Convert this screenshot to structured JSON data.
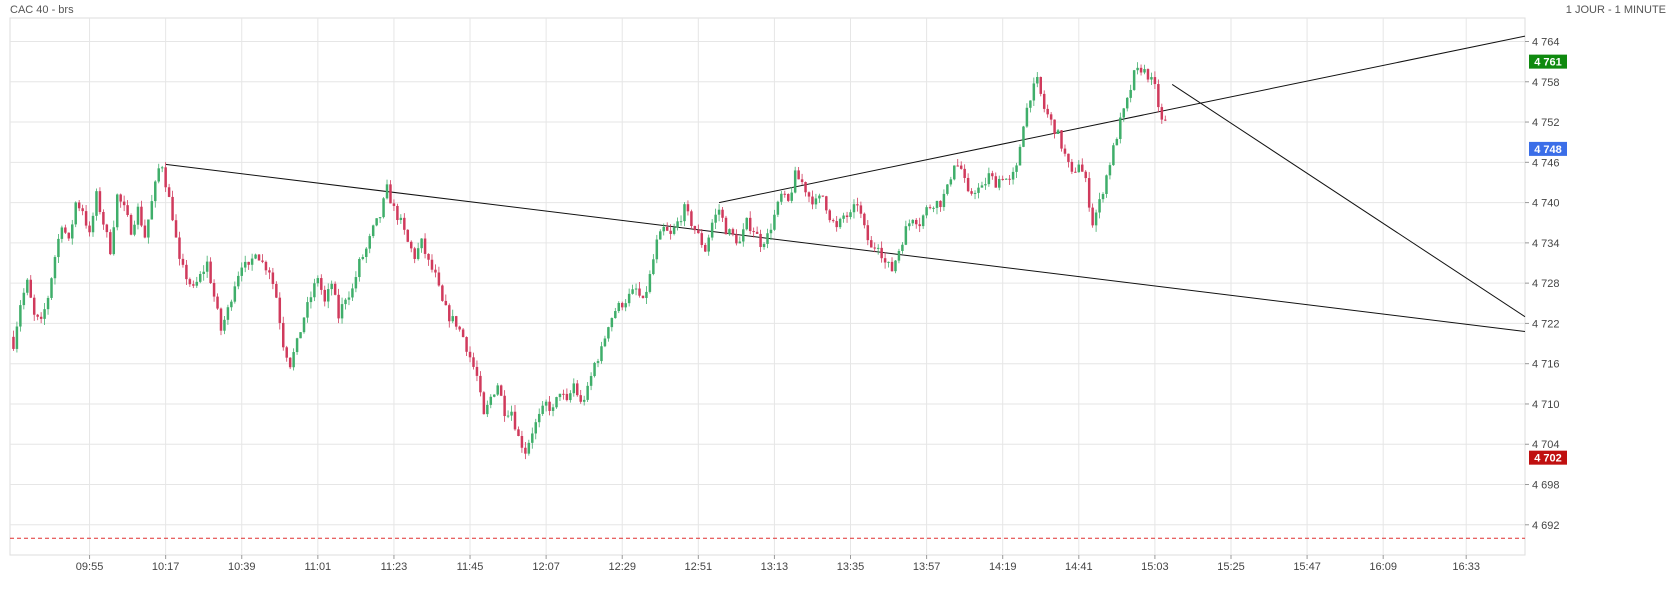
{
  "header": {
    "left_title": "CAC 40 - brs",
    "right_title": "1 JOUR - 1 MINUTE"
  },
  "chart_data": {
    "type": "candlestick",
    "title": "CAC 40 - brs",
    "period": "1 JOUR - 1 MINUTE",
    "x_ticks": [
      "09:55",
      "10:17",
      "10:39",
      "11:01",
      "11:23",
      "11:45",
      "12:07",
      "12:29",
      "12:51",
      "13:13",
      "13:35",
      "13:57",
      "14:19",
      "14:41",
      "15:03",
      "15:25",
      "15:47",
      "16:09",
      "16:33"
    ],
    "x_range": [
      "09:32",
      "16:50"
    ],
    "y_ticks": [
      4764,
      4758,
      4752,
      4746,
      4740,
      4734,
      4728,
      4722,
      4716,
      4710,
      4704,
      4698,
      4692
    ],
    "y_tick_labels": [
      "4 764",
      "4 758",
      "4 752",
      "4 746",
      "4 740",
      "4 734",
      "4 728",
      "4 722",
      "4 716",
      "4 710",
      "4 704",
      "4 698",
      "4 692"
    ],
    "ylim": [
      4687.5,
      4767.5
    ],
    "grid": true,
    "price_badges": [
      {
        "label": "4 761",
        "value": 4761.0,
        "color": "#0f8a0f"
      },
      {
        "label": "4 748",
        "value": 4748.0,
        "color": "#3b6ee8"
      },
      {
        "label": "4 702",
        "value": 4702.0,
        "color": "#c01010"
      }
    ],
    "reference_line": {
      "value": 4690.0,
      "color": "#e03030",
      "style": "dashed"
    },
    "trendlines": [
      {
        "points": [
          [
            "10:17",
            4745.7
          ],
          [
            "16:50",
            4720.8
          ]
        ]
      },
      {
        "points": [
          [
            "12:57",
            4740.0
          ],
          [
            "16:50",
            4764.8
          ]
        ]
      },
      {
        "points": [
          [
            "15:08",
            4757.6
          ],
          [
            "16:50",
            4723.0
          ]
        ]
      }
    ],
    "colors": {
      "up": "#3fae6a",
      "down": "#d03a5c",
      "grid": "#e6e6e6"
    },
    "price_path": [
      [
        "09:33",
        4720.0
      ],
      [
        "09:34",
        4719.0
      ],
      [
        "09:36",
        4725.0
      ],
      [
        "09:38",
        4728.0
      ],
      [
        "09:40",
        4723.0
      ],
      [
        "09:42",
        4722.0
      ],
      [
        "09:44",
        4726.0
      ],
      [
        "09:46",
        4732.0
      ],
      [
        "09:48",
        4737.0
      ],
      [
        "09:50",
        4734.0
      ],
      [
        "09:52",
        4740.0
      ],
      [
        "09:54",
        4739.0
      ],
      [
        "09:56",
        4735.0
      ],
      [
        "09:58",
        4741.0
      ],
      [
        "10:00",
        4737.0
      ],
      [
        "10:02",
        4733.0
      ],
      [
        "10:04",
        4741.0
      ],
      [
        "10:06",
        4739.0
      ],
      [
        "10:08",
        4736.0
      ],
      [
        "10:10",
        4739.0
      ],
      [
        "10:12",
        4735.0
      ],
      [
        "10:14",
        4740.0
      ],
      [
        "10:16",
        4745.0
      ],
      [
        "10:17",
        4745.7
      ],
      [
        "10:18",
        4743.0
      ],
      [
        "10:20",
        4738.0
      ],
      [
        "10:22",
        4731.0
      ],
      [
        "10:24",
        4729.0
      ],
      [
        "10:26",
        4727.0
      ],
      [
        "10:28",
        4729.0
      ],
      [
        "10:30",
        4731.0
      ],
      [
        "10:32",
        4726.0
      ],
      [
        "10:34",
        4721.0
      ],
      [
        "10:36",
        4724.0
      ],
      [
        "10:38",
        4728.0
      ],
      [
        "10:40",
        4731.0
      ],
      [
        "10:42",
        4730.0
      ],
      [
        "10:44",
        4733.0
      ],
      [
        "10:46",
        4731.0
      ],
      [
        "10:48",
        4730.0
      ],
      [
        "10:50",
        4726.0
      ],
      [
        "10:52",
        4719.0
      ],
      [
        "10:54",
        4716.0
      ],
      [
        "10:56",
        4719.0
      ],
      [
        "10:58",
        4723.0
      ],
      [
        "11:00",
        4726.0
      ],
      [
        "11:02",
        4729.0
      ],
      [
        "11:04",
        4725.0
      ],
      [
        "11:06",
        4728.0
      ],
      [
        "11:08",
        4723.0
      ],
      [
        "11:10",
        4726.0
      ],
      [
        "11:12",
        4727.0
      ],
      [
        "11:14",
        4731.0
      ],
      [
        "11:16",
        4733.0
      ],
      [
        "11:18",
        4736.0
      ],
      [
        "11:20",
        4738.0
      ],
      [
        "11:22",
        4742.0
      ],
      [
        "11:24",
        4739.0
      ],
      [
        "11:26",
        4737.0
      ],
      [
        "11:28",
        4734.0
      ],
      [
        "11:30",
        4732.0
      ],
      [
        "11:32",
        4734.0
      ],
      [
        "11:34",
        4731.0
      ],
      [
        "11:36",
        4729.0
      ],
      [
        "11:38",
        4725.0
      ],
      [
        "11:40",
        4723.0
      ],
      [
        "11:42",
        4722.0
      ],
      [
        "11:44",
        4720.0
      ],
      [
        "11:46",
        4717.0
      ],
      [
        "11:48",
        4714.0
      ],
      [
        "11:50",
        4708.0
      ],
      [
        "11:52",
        4711.0
      ],
      [
        "11:54",
        4713.0
      ],
      [
        "11:56",
        4709.0
      ],
      [
        "11:58",
        4709.0
      ],
      [
        "12:00",
        4705.0
      ],
      [
        "12:02",
        4703.0
      ],
      [
        "12:04",
        4706.0
      ],
      [
        "12:06",
        4708.0
      ],
      [
        "12:08",
        4710.0
      ],
      [
        "12:10",
        4709.0
      ],
      [
        "12:12",
        4712.0
      ],
      [
        "12:14",
        4710.0
      ],
      [
        "12:16",
        4713.0
      ],
      [
        "12:18",
        4710.0
      ],
      [
        "12:20",
        4712.0
      ],
      [
        "12:22",
        4716.0
      ],
      [
        "12:24",
        4718.0
      ],
      [
        "12:26",
        4722.0
      ],
      [
        "12:28",
        4724.0
      ],
      [
        "12:30",
        4725.0
      ],
      [
        "12:32",
        4726.0
      ],
      [
        "12:34",
        4727.0
      ],
      [
        "12:36",
        4725.0
      ],
      [
        "12:38",
        4729.0
      ],
      [
        "12:40",
        4734.0
      ],
      [
        "12:42",
        4736.0
      ],
      [
        "12:44",
        4735.0
      ],
      [
        "12:46",
        4737.0
      ],
      [
        "12:48",
        4739.0
      ],
      [
        "12:50",
        4737.0
      ],
      [
        "12:52",
        4735.0
      ],
      [
        "12:54",
        4733.0
      ],
      [
        "12:56",
        4737.0
      ],
      [
        "12:58",
        4739.0
      ],
      [
        "13:00",
        4736.0
      ],
      [
        "13:02",
        4735.0
      ],
      [
        "13:04",
        4734.0
      ],
      [
        "13:06",
        4737.0
      ],
      [
        "13:08",
        4736.0
      ],
      [
        "13:10",
        4734.0
      ],
      [
        "13:12",
        4735.0
      ],
      [
        "13:14",
        4738.0
      ],
      [
        "13:16",
        4741.0
      ],
      [
        "13:18",
        4740.0
      ],
      [
        "13:20",
        4744.0
      ],
      [
        "13:22",
        4743.0
      ],
      [
        "13:24",
        4741.0
      ],
      [
        "13:26",
        4740.0
      ],
      [
        "13:28",
        4741.0
      ],
      [
        "13:30",
        4738.0
      ],
      [
        "13:32",
        4736.0
      ],
      [
        "13:34",
        4738.0
      ],
      [
        "13:36",
        4738.0
      ],
      [
        "13:38",
        4740.0
      ],
      [
        "13:40",
        4736.0
      ],
      [
        "13:42",
        4733.0
      ],
      [
        "13:44",
        4734.0
      ],
      [
        "13:46",
        4731.0
      ],
      [
        "13:48",
        4730.0
      ],
      [
        "13:50",
        4733.0
      ],
      [
        "13:52",
        4736.0
      ],
      [
        "13:54",
        4738.0
      ],
      [
        "13:56",
        4737.0
      ],
      [
        "13:58",
        4739.0
      ],
      [
        "14:00",
        4740.0
      ],
      [
        "14:02",
        4740.0
      ],
      [
        "14:04",
        4742.0
      ],
      [
        "14:06",
        4746.0
      ],
      [
        "14:08",
        4745.0
      ],
      [
        "14:10",
        4741.0
      ],
      [
        "14:12",
        4742.0
      ],
      [
        "14:14",
        4742.0
      ],
      [
        "14:16",
        4744.0
      ],
      [
        "14:18",
        4743.0
      ],
      [
        "14:20",
        4744.0
      ],
      [
        "14:22",
        4743.0
      ],
      [
        "14:24",
        4745.0
      ],
      [
        "14:26",
        4752.0
      ],
      [
        "14:28",
        4756.0
      ],
      [
        "14:30",
        4758.0
      ],
      [
        "14:32",
        4754.0
      ],
      [
        "14:34",
        4752.0
      ],
      [
        "14:36",
        4750.0
      ],
      [
        "14:38",
        4747.0
      ],
      [
        "14:40",
        4744.0
      ],
      [
        "14:42",
        4746.0
      ],
      [
        "14:44",
        4743.0
      ],
      [
        "14:46",
        4737.0
      ],
      [
        "14:48",
        4740.0
      ],
      [
        "14:50",
        4744.0
      ],
      [
        "14:52",
        4748.0
      ],
      [
        "14:54",
        4752.0
      ],
      [
        "14:56",
        4755.0
      ],
      [
        "14:58",
        4759.0
      ],
      [
        "15:00",
        4760.0
      ],
      [
        "15:02",
        4759.0
      ],
      [
        "15:04",
        4757.0
      ],
      [
        "15:06",
        4752.0
      ]
    ]
  }
}
